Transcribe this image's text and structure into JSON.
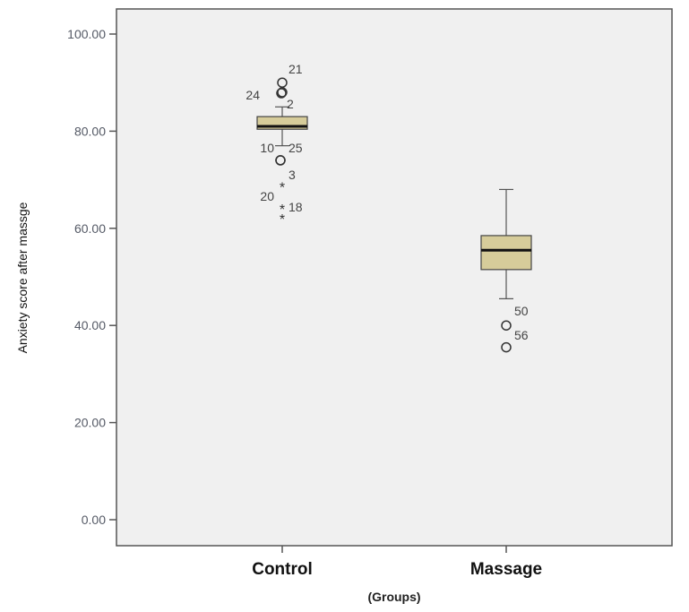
{
  "chart_data": {
    "type": "boxplot",
    "title": "",
    "xlabel": "(Groups)",
    "ylabel": "Anxiety score after massge",
    "ylim": [
      0,
      100
    ],
    "yticks": [
      "0.00",
      "20.00",
      "40.00",
      "60.00",
      "80.00",
      "100.00"
    ],
    "ytick_values": [
      0,
      20,
      40,
      60,
      80,
      100
    ],
    "grid": false,
    "colors": {
      "box_fill": "#d6cc9a",
      "plot_bg": "#f0f0f0",
      "axis": "#555555"
    },
    "groups": [
      {
        "name": "Control",
        "whisker_low": 77,
        "q1": 80.4,
        "median": 81,
        "q3": 83,
        "whisker_high": 85,
        "outliers": [
          {
            "value": 90,
            "label": "21",
            "marker": "circle"
          },
          {
            "value": 88,
            "label": "24",
            "marker": "circle"
          },
          {
            "value": 74,
            "label": "10",
            "marker": "circle"
          },
          {
            "value": 74,
            "label": "25",
            "marker": "circle"
          },
          {
            "value": 68.5,
            "label": "3",
            "marker": "star"
          },
          {
            "value": 64,
            "label": "18",
            "marker": "star"
          },
          {
            "value": 62,
            "label": "20",
            "marker": "star"
          }
        ],
        "extra_labels": [
          {
            "value": 86,
            "label": "2"
          }
        ]
      },
      {
        "name": "Massage",
        "whisker_low": 45.5,
        "q1": 51.5,
        "median": 55.5,
        "q3": 58.5,
        "whisker_high": 68,
        "outliers": [
          {
            "value": 40,
            "label": "50",
            "marker": "circle"
          },
          {
            "value": 35.5,
            "label": "56",
            "marker": "circle"
          }
        ],
        "extra_labels": []
      }
    ]
  }
}
